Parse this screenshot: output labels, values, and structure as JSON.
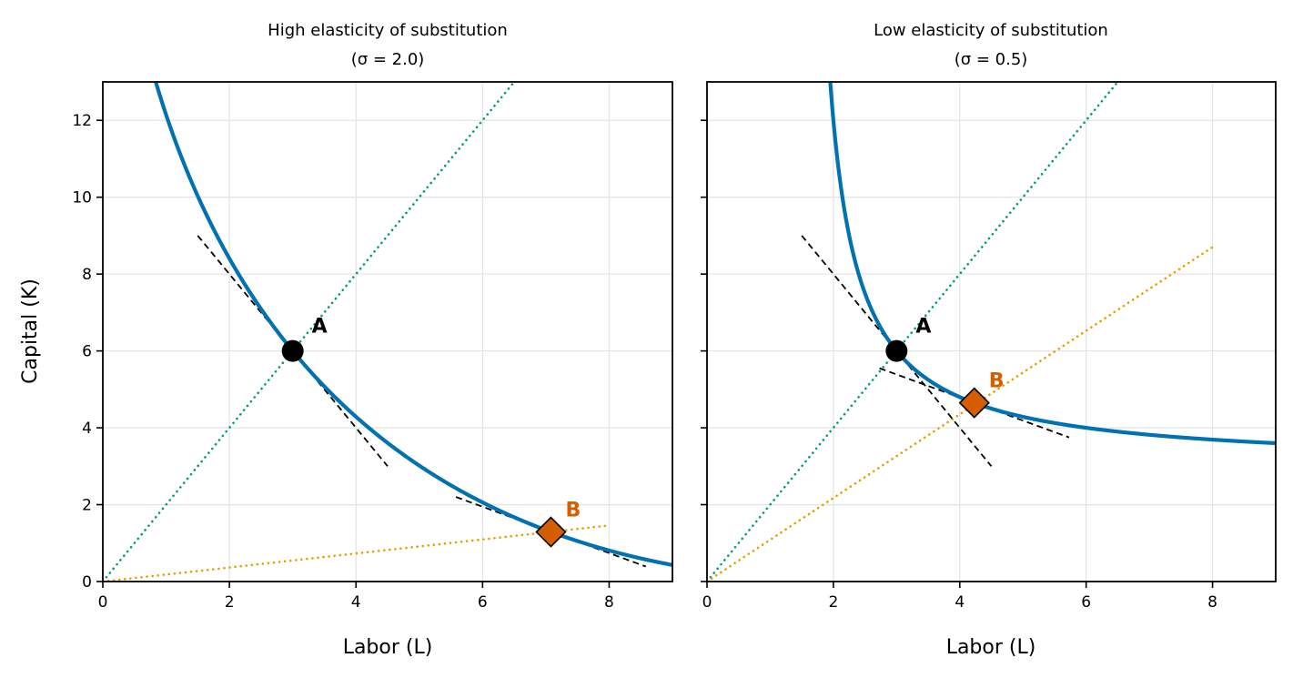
{
  "figure": {
    "ylabel": "Capital (K)",
    "colors": {
      "isoquant": "#0072b2",
      "ray_a": "#009e73",
      "ray_b": "#e69f00",
      "point_a": "#000000",
      "point_b": "#d55e00",
      "tangent": "#000000",
      "grid": "#e5e5e5"
    }
  },
  "chart_data": [
    {
      "type": "line",
      "title_line1": "High elasticity of substitution",
      "title_line2": "(σ = 2.0)",
      "sigma": 2.0,
      "xlabel": "Labor (L)",
      "ylabel": "Capital (K)",
      "xlim": [
        0,
        9
      ],
      "ylim": [
        0,
        13
      ],
      "xticks": [
        0,
        2,
        4,
        6,
        8
      ],
      "yticks": [
        0,
        2,
        4,
        6,
        8,
        10,
        12
      ],
      "show_ytick_labels": true,
      "grid": true,
      "isoquant": {
        "name": "isoquant",
        "x": [
          0.83,
          1.0,
          1.25,
          1.5,
          1.75,
          2.0,
          2.25,
          2.5,
          2.75,
          3.0,
          3.5,
          4.0,
          4.5,
          5.0,
          5.5,
          6.0,
          6.5,
          7.0,
          7.5,
          8.0,
          8.5,
          9.0
        ],
        "y": [
          13.0,
          12.08,
          10.86,
          9.8,
          8.85,
          8.0,
          7.23,
          6.53,
          5.9,
          6.0,
          5.04,
          4.27,
          3.6,
          3.0,
          2.47,
          2.0,
          1.59,
          1.33,
          1.0,
          0.76,
          0.57,
          0.43
        ]
      },
      "point_a": {
        "label": "A",
        "x": 3.0,
        "y": 6.0,
        "marker": "circle"
      },
      "point_b": {
        "label": "B",
        "x": 7.08,
        "y": 1.29,
        "marker": "diamond"
      },
      "ray_a": {
        "x": [
          0,
          6.5
        ],
        "y": [
          0,
          13.0
        ]
      },
      "ray_b": {
        "x": [
          0,
          8.0
        ],
        "y": [
          0,
          1.46
        ]
      },
      "tangent_a": {
        "x": [
          1.5,
          4.5
        ],
        "y": [
          9.0,
          3.0
        ]
      },
      "tangent_b": {
        "x": [
          5.58,
          8.58
        ],
        "y": [
          2.2,
          0.39
        ]
      }
    },
    {
      "type": "line",
      "title_line1": "Low elasticity of substitution",
      "title_line2": "(σ = 0.5)",
      "sigma": 0.5,
      "xlabel": "Labor (L)",
      "ylabel": "",
      "xlim": [
        0,
        9
      ],
      "ylim": [
        0,
        13
      ],
      "xticks": [
        0,
        2,
        4,
        6,
        8
      ],
      "yticks": [
        0,
        2,
        4,
        6,
        8,
        10,
        12
      ],
      "show_ytick_labels": false,
      "grid": true,
      "isoquant": {
        "name": "isoquant",
        "x": [
          1.94,
          2.0,
          2.1,
          2.25,
          2.5,
          2.75,
          3.0,
          3.25,
          3.5,
          3.75,
          4.0,
          4.25,
          4.5,
          5.0,
          5.5,
          6.0,
          6.5,
          7.0,
          7.5,
          8.0,
          8.5,
          9.0
        ],
        "y": [
          13.0,
          12.0,
          10.5,
          9.0,
          7.5,
          6.6,
          6.0,
          5.57,
          5.25,
          5.0,
          4.8,
          4.64,
          4.5,
          4.29,
          4.13,
          4.0,
          3.9,
          3.82,
          3.75,
          3.69,
          3.64,
          3.6
        ]
      },
      "point_a": {
        "label": "A",
        "x": 3.0,
        "y": 6.0,
        "marker": "circle"
      },
      "point_b": {
        "label": "B",
        "x": 4.23,
        "y": 4.65,
        "marker": "diamond"
      },
      "ray_a": {
        "x": [
          0,
          6.5
        ],
        "y": [
          0,
          13.0
        ]
      },
      "ray_b": {
        "x": [
          0,
          8.0
        ],
        "y": [
          0,
          8.7
        ]
      },
      "tangent_a": {
        "x": [
          1.5,
          4.5
        ],
        "y": [
          9.0,
          3.0
        ]
      },
      "tangent_b": {
        "x": [
          2.73,
          5.73
        ],
        "y": [
          5.55,
          3.75
        ]
      }
    }
  ]
}
